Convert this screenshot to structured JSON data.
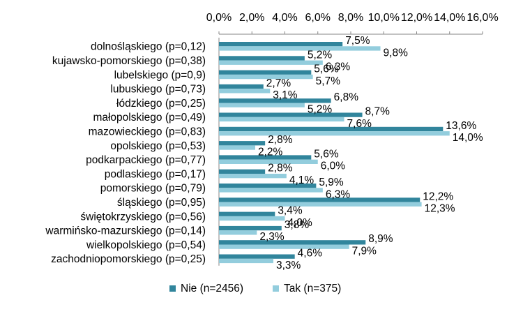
{
  "chart_data": {
    "type": "bar",
    "orientation": "horizontal",
    "title": "",
    "xlabel": "",
    "ylabel": "",
    "xlim": [
      0,
      16
    ],
    "x_axis_position": "top",
    "ticks": [
      {
        "value": 0,
        "label": "0,0%"
      },
      {
        "value": 2,
        "label": "2,0%"
      },
      {
        "value": 4,
        "label": "4,0%"
      },
      {
        "value": 6,
        "label": "6,0%"
      },
      {
        "value": 8,
        "label": "8,0%"
      },
      {
        "value": 10,
        "label": "10,0%"
      },
      {
        "value": 12,
        "label": "12,0%"
      },
      {
        "value": 14,
        "label": "14,0%"
      },
      {
        "value": 16,
        "label": "16,0%"
      }
    ],
    "grid": false,
    "legend_position": "bottom",
    "categories": [
      "dolnośląskiego (p=0,12)",
      "kujawsko-pomorskiego (p=0,38)",
      "lubelskiego (p=0,9)",
      "lubuskiego (p=0,73)",
      "łódzkiego (p=0,25)",
      "małopolskiego (p=0,49)",
      "mazowieckiego (p=0,83)",
      "opolskiego (p=0,53)",
      "podkarpackiego (p=0,77)",
      "podlaskiego (p=0,17)",
      "pomorskiego (p=0,79)",
      "śląskiego (p=0,95)",
      "świętokrzyskiego (p=0,56)",
      "warmińsko-mazurskiego (p=0,14)",
      "wielkopolskiego (p=0,54)",
      "zachodniopomorskiego (p=0,25)"
    ],
    "series": [
      {
        "name": "Nie (n=2456)",
        "color": "#31859c",
        "values": [
          7.5,
          5.2,
          5.6,
          2.7,
          6.8,
          8.7,
          13.6,
          2.8,
          5.6,
          2.8,
          5.9,
          12.2,
          3.4,
          3.8,
          8.9,
          4.6
        ],
        "labels": [
          "7,5%",
          "5,2%",
          "5,6%",
          "2,7%",
          "6,8%",
          "8,7%",
          "13,6%",
          "2,8%",
          "5,6%",
          "2,8%",
          "5,9%",
          "12,2%",
          "3,4%",
          "3,8%",
          "8,9%",
          "4,6%"
        ]
      },
      {
        "name": "Tak (n=375)",
        "color": "#93cddd",
        "values": [
          9.8,
          6.3,
          5.7,
          3.1,
          5.2,
          7.6,
          14.0,
          2.2,
          6.0,
          4.1,
          6.3,
          12.3,
          4.0,
          2.3,
          7.9,
          3.3
        ],
        "labels": [
          "9,8%",
          "6,3%",
          "5,7%",
          "3,1%",
          "5,2%",
          "7,6%",
          "14,0%",
          "2,2%",
          "6,0%",
          "4,1%",
          "6,3%",
          "12,3%",
          "4,0%",
          "2,3%",
          "7,9%",
          "3,3%"
        ]
      }
    ]
  }
}
